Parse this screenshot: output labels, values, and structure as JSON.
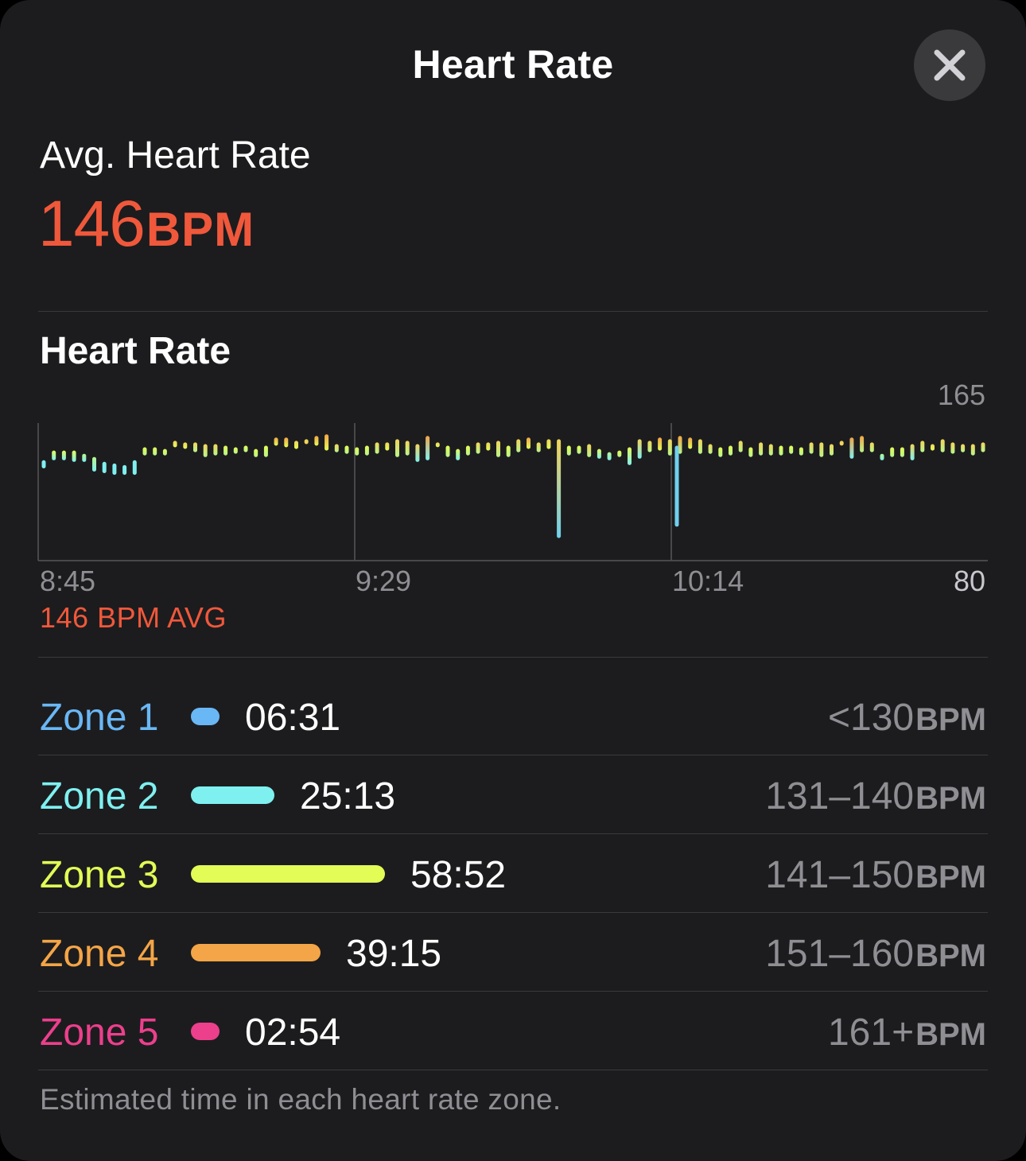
{
  "header": {
    "title": "Heart Rate",
    "close_icon": "xmark-icon"
  },
  "summary": {
    "label": "Avg. Heart Rate",
    "value": "146",
    "unit": "BPM",
    "color": "#f0583b"
  },
  "chart": {
    "title": "Heart Rate",
    "y_max_label": "165",
    "y_min_label": "80",
    "x_labels": [
      "8:45",
      "9:29",
      "10:14"
    ],
    "avg_label": "146 BPM AVG"
  },
  "chart_data": {
    "type": "bar",
    "title": "Heart Rate",
    "ylim": [
      80,
      165
    ],
    "x_tick_labels": [
      "8:45",
      "9:29",
      "10:14"
    ],
    "grid": true,
    "bars": [
      [
        137,
        142
      ],
      [
        142,
        148
      ],
      [
        142,
        148
      ],
      [
        141,
        148
      ],
      [
        141,
        146
      ],
      [
        135,
        144
      ],
      [
        134,
        141
      ],
      [
        133,
        140
      ],
      [
        133,
        139
      ],
      [
        133,
        142
      ],
      [
        145,
        150
      ],
      [
        145,
        150
      ],
      [
        145,
        149
      ],
      [
        150,
        154
      ],
      [
        149,
        153
      ],
      [
        147,
        153
      ],
      [
        144,
        152
      ],
      [
        145,
        152
      ],
      [
        145,
        151
      ],
      [
        146,
        150
      ],
      [
        147,
        151
      ],
      [
        144,
        149
      ],
      [
        144,
        151
      ],
      [
        151,
        156
      ],
      [
        150,
        156
      ],
      [
        149,
        154
      ],
      [
        152,
        155
      ],
      [
        151,
        157
      ],
      [
        148,
        158
      ],
      [
        147,
        152
      ],
      [
        146,
        151
      ],
      [
        145,
        150
      ],
      [
        145,
        151
      ],
      [
        146,
        153
      ],
      [
        148,
        153
      ],
      [
        144,
        155
      ],
      [
        145,
        154
      ],
      [
        141,
        152
      ],
      [
        142,
        157
      ],
      [
        151,
        153
      ],
      [
        144,
        151
      ],
      [
        142,
        149
      ],
      [
        145,
        151
      ],
      [
        146,
        153
      ],
      [
        148,
        153
      ],
      [
        144,
        154
      ],
      [
        144,
        151
      ],
      [
        147,
        155
      ],
      [
        149,
        156
      ],
      [
        147,
        153
      ],
      [
        149,
        155
      ],
      [
        94,
        155
      ],
      [
        145,
        151
      ],
      [
        146,
        151
      ],
      [
        144,
        152
      ],
      [
        143,
        149
      ],
      [
        142,
        147
      ],
      [
        144,
        148
      ],
      [
        139,
        150
      ],
      [
        143,
        155
      ],
      [
        147,
        154
      ],
      [
        148,
        156
      ],
      [
        145,
        155
      ],
      [
        146,
        157
      ],
      [
        149,
        156
      ],
      [
        146,
        155
      ],
      [
        146,
        152
      ],
      [
        144,
        150
      ],
      [
        145,
        151
      ],
      [
        147,
        154
      ],
      [
        144,
        150
      ],
      [
        145,
        153
      ],
      [
        145,
        152
      ],
      [
        145,
        151
      ],
      [
        146,
        151
      ],
      [
        145,
        150
      ],
      [
        146,
        153
      ],
      [
        144,
        153
      ],
      [
        145,
        152
      ],
      [
        153,
        154
      ],
      [
        143,
        156
      ],
      [
        147,
        157
      ],
      [
        147,
        153
      ],
      [
        142,
        146
      ],
      [
        144,
        150
      ],
      [
        144,
        150
      ],
      [
        142,
        152
      ],
      [
        147,
        154
      ],
      [
        148,
        152
      ],
      [
        147,
        155
      ],
      [
        146,
        153
      ],
      [
        147,
        152
      ],
      [
        145,
        152
      ],
      [
        147,
        153
      ]
    ],
    "low_bar": {
      "index_time": "~10:14",
      "value": [
        101,
        151
      ]
    }
  },
  "zones": [
    {
      "name": "Zone 1",
      "time": "06:31",
      "range": "<130",
      "unit": "BPM",
      "color": "#6ab7f5",
      "minutes": 6.52
    },
    {
      "name": "Zone 2",
      "time": "25:13",
      "range": "131–140",
      "unit": "BPM",
      "color": "#7ff0f0",
      "minutes": 25.22
    },
    {
      "name": "Zone 3",
      "time": "58:52",
      "range": "141–150",
      "unit": "BPM",
      "color": "#e3fc56",
      "minutes": 58.87
    },
    {
      "name": "Zone 4",
      "time": "39:15",
      "range": "151–160",
      "unit": "BPM",
      "color": "#f4a547",
      "minutes": 39.25
    },
    {
      "name": "Zone 5",
      "time": "02:54",
      "range": "161+",
      "unit": "BPM",
      "color": "#ec3f8c",
      "minutes": 2.9
    }
  ],
  "footnote": "Estimated time in each heart rate zone."
}
